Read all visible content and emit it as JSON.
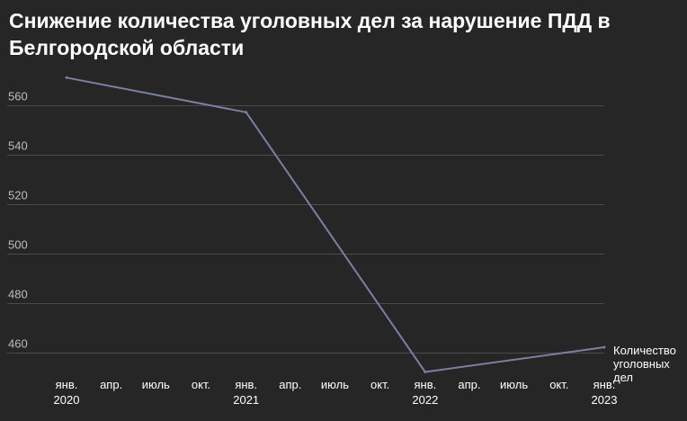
{
  "chart_data": {
    "type": "line",
    "title": "Снижение количества уголовных дел за нарушение ПДД в Белгородской области",
    "xlabel": "",
    "ylabel": "",
    "ylim": [
      450,
      570
    ],
    "y_ticks": [
      460,
      480,
      500,
      520,
      540,
      560
    ],
    "x_ticks": [
      {
        "x": "2020-01-01",
        "label": [
          "янв.",
          "2020"
        ]
      },
      {
        "x": "2020-04-01",
        "label": [
          "апр."
        ]
      },
      {
        "x": "2020-07-01",
        "label": [
          "июль"
        ]
      },
      {
        "x": "2020-10-01",
        "label": [
          "окт."
        ]
      },
      {
        "x": "2021-01-01",
        "label": [
          "янв.",
          "2021"
        ]
      },
      {
        "x": "2021-04-01",
        "label": [
          "апр."
        ]
      },
      {
        "x": "2021-07-01",
        "label": [
          "июль"
        ]
      },
      {
        "x": "2021-10-01",
        "label": [
          "окт."
        ]
      },
      {
        "x": "2022-01-01",
        "label": [
          "янв.",
          "2022"
        ]
      },
      {
        "x": "2022-04-01",
        "label": [
          "апр."
        ]
      },
      {
        "x": "2022-07-01",
        "label": [
          "июль"
        ]
      },
      {
        "x": "2022-10-01",
        "label": [
          "окт."
        ]
      },
      {
        "x": "2023-01-01",
        "label": [
          "янв.",
          "2023"
        ]
      }
    ],
    "grid": true,
    "series": [
      {
        "name": "Количество уголовных дел",
        "color": "#7b7fa3",
        "x": [
          "2020-01-01",
          "2021-01-01",
          "2022-01-01",
          "2023-01-01"
        ],
        "values": [
          571,
          557,
          452,
          462
        ]
      }
    ]
  }
}
